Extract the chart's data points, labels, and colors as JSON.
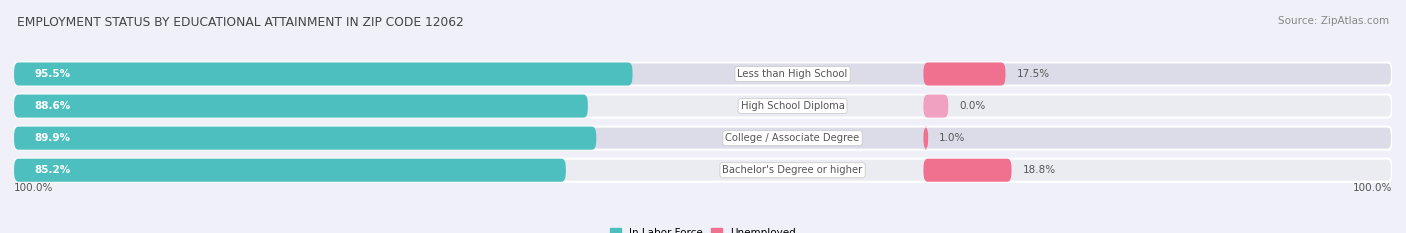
{
  "title": "EMPLOYMENT STATUS BY EDUCATIONAL ATTAINMENT IN ZIP CODE 12062",
  "source": "Source: ZipAtlas.com",
  "categories": [
    "Less than High School",
    "High School Diploma",
    "College / Associate Degree",
    "Bachelor's Degree or higher"
  ],
  "labor_force_pct": [
    95.5,
    88.6,
    89.9,
    85.2
  ],
  "unemployed_pct": [
    17.5,
    0.0,
    1.0,
    18.8
  ],
  "labor_force_color": "#4DBFBF",
  "unemployed_color": "#F07090",
  "unemployed_color_faint": "#F0A0C0",
  "row_bg_light": "#EBEBF2",
  "row_bg_dark": "#DCDCE8",
  "fig_bg": "#F0F0F8",
  "label_color": "#555555",
  "title_color": "#444444",
  "white": "#FFFFFF",
  "left_axis_label": "100.0%",
  "right_axis_label": "100.0%",
  "figsize": [
    14.06,
    2.33
  ],
  "dpi": 100
}
